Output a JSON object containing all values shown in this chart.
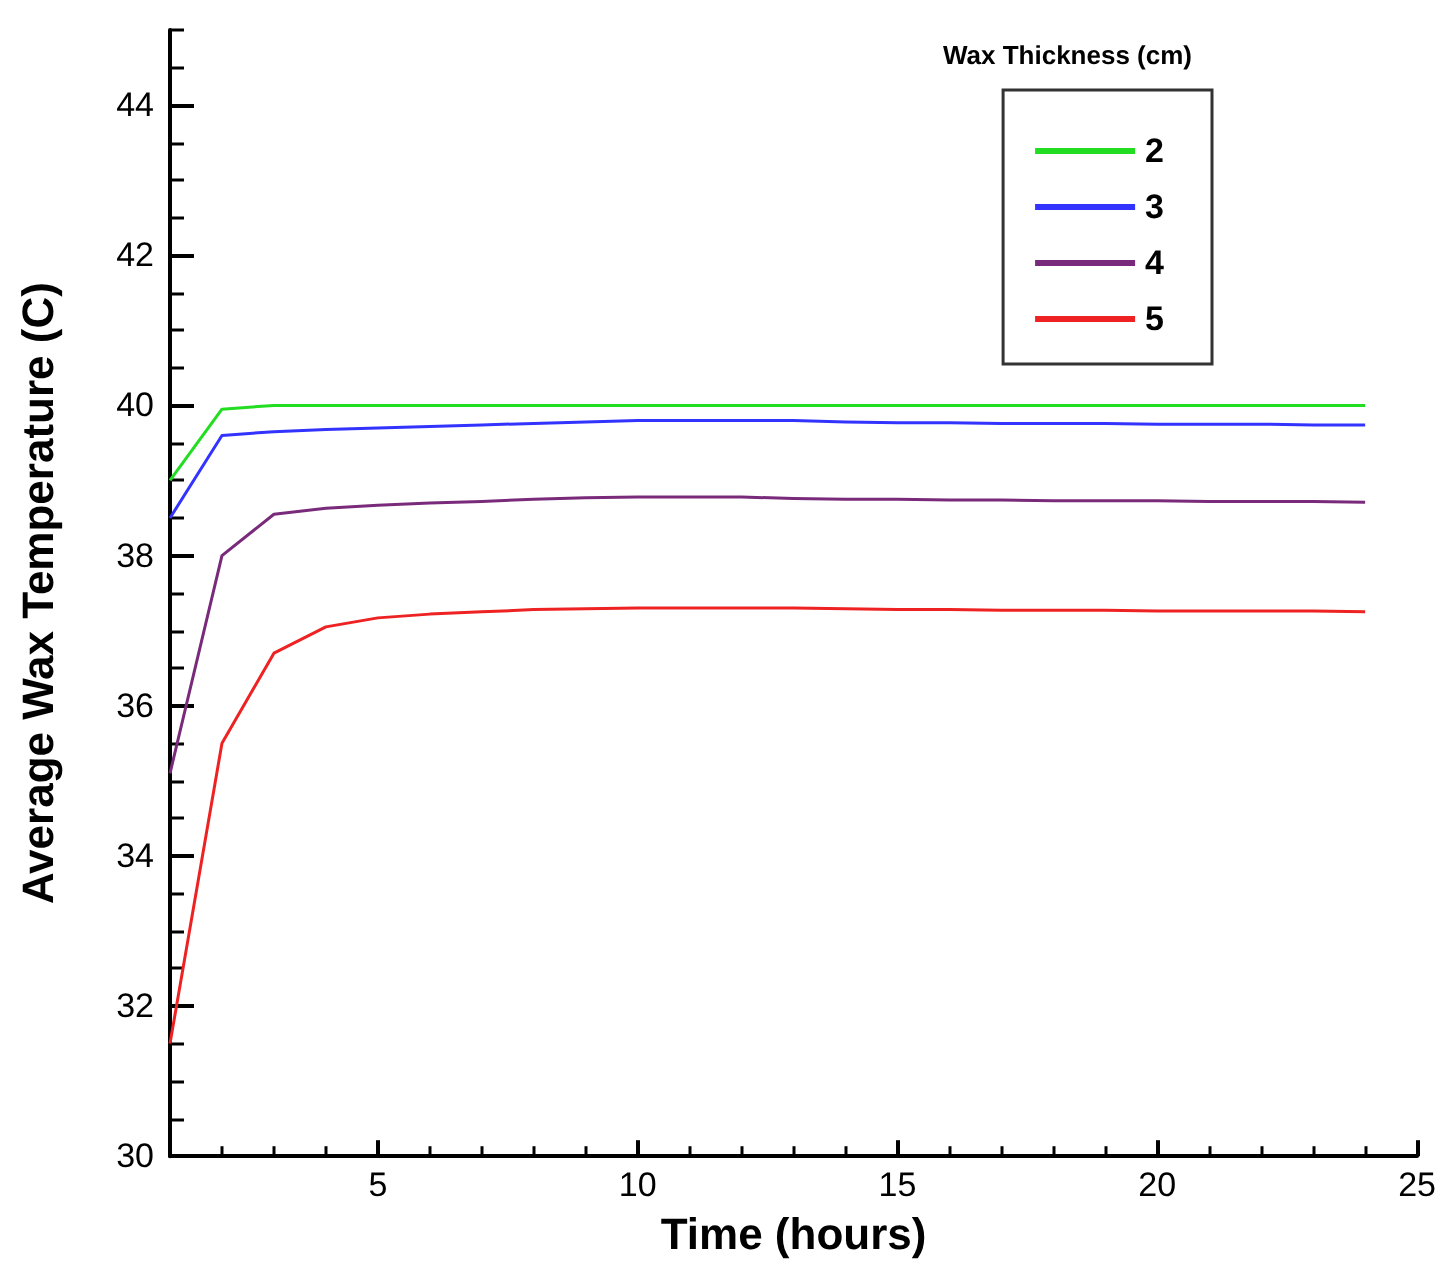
{
  "chart_data": {
    "type": "line",
    "xlabel": "Time (hours)",
    "ylabel": "Average Wax Temperature (C)",
    "legend_title": "Wax Thickness (cm)",
    "x": [
      1,
      2,
      3,
      4,
      5,
      6,
      7,
      8,
      9,
      10,
      11,
      12,
      13,
      14,
      15,
      16,
      17,
      18,
      19,
      20,
      21,
      22,
      23,
      24
    ],
    "series": [
      {
        "name": "2",
        "color": "#22dd22",
        "values": [
          39,
          39.95,
          40,
          40,
          40,
          40,
          40,
          40,
          40,
          40,
          40,
          40,
          40,
          40,
          40,
          40,
          40,
          40,
          40,
          40,
          40,
          40,
          40,
          40
        ]
      },
      {
        "name": "3",
        "color": "#3333ff",
        "values": [
          38.5,
          39.6,
          39.65,
          39.68,
          39.7,
          39.72,
          39.74,
          39.76,
          39.78,
          39.8,
          39.8,
          39.8,
          39.8,
          39.78,
          39.77,
          39.77,
          39.76,
          39.76,
          39.76,
          39.75,
          39.75,
          39.75,
          39.74,
          39.74
        ]
      },
      {
        "name": "4",
        "color": "#7a2a7a",
        "values": [
          35.1,
          38.0,
          38.55,
          38.63,
          38.67,
          38.7,
          38.72,
          38.75,
          38.77,
          38.78,
          38.78,
          38.78,
          38.76,
          38.75,
          38.75,
          38.74,
          38.74,
          38.73,
          38.73,
          38.73,
          38.72,
          38.72,
          38.72,
          38.71
        ]
      },
      {
        "name": "5",
        "color": "#ee2222",
        "values": [
          31.5,
          35.5,
          36.7,
          37.05,
          37.17,
          37.22,
          37.25,
          37.28,
          37.29,
          37.3,
          37.3,
          37.3,
          37.3,
          37.29,
          37.28,
          37.28,
          37.27,
          37.27,
          37.27,
          37.26,
          37.26,
          37.26,
          37.26,
          37.25
        ]
      }
    ],
    "xlim": [
      1,
      25
    ],
    "xticks": [
      5,
      10,
      15,
      20,
      25
    ],
    "ylim": [
      30,
      45
    ],
    "yticks": [
      30,
      32,
      34,
      36,
      38,
      40,
      42,
      44
    ],
    "grid": false,
    "legend": "top right",
    "marker": "none",
    "line_style": "solid"
  }
}
